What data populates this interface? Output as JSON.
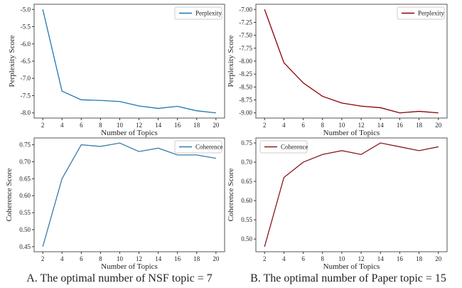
{
  "chart_data": [
    {
      "type": "line",
      "panel": "A-top",
      "xlabel": "Number of Topics",
      "ylabel": "Perplexity Score",
      "x": [
        2,
        4,
        6,
        8,
        10,
        12,
        14,
        16,
        18,
        20
      ],
      "xticks": [
        2,
        4,
        6,
        8,
        10,
        12,
        14,
        16,
        18,
        20
      ],
      "yticks": [
        -8.0,
        -7.5,
        -7.0,
        -6.5,
        -6.0,
        -5.5,
        -5.0
      ],
      "ytick_decimals": 1,
      "ylim": [
        -8.15,
        -4.85
      ],
      "legend_position": "top-right",
      "grid": false,
      "series": [
        {
          "name": "Perplexity",
          "color": "#1f77b4",
          "values": [
            -5.0,
            -7.37,
            -7.62,
            -7.64,
            -7.67,
            -7.8,
            -7.87,
            -7.81,
            -7.94,
            -8.0
          ]
        }
      ]
    },
    {
      "type": "line",
      "panel": "B-top",
      "xlabel": "Number of Topics",
      "ylabel": "Perplexity Score",
      "x": [
        2,
        4,
        6,
        8,
        10,
        12,
        14,
        16,
        18,
        20
      ],
      "xticks": [
        2,
        4,
        6,
        8,
        10,
        12,
        14,
        16,
        18,
        20
      ],
      "yticks": [
        -9.0,
        -8.75,
        -8.5,
        -8.25,
        -8.0,
        -7.75,
        -7.5,
        -7.25,
        -7.0
      ],
      "ytick_decimals": 2,
      "ylim": [
        -9.1,
        -6.9
      ],
      "legend_position": "top-right",
      "grid": false,
      "series": [
        {
          "name": "Perplexity",
          "color": "#8b0000",
          "values": [
            -7.0,
            -8.03,
            -8.42,
            -8.68,
            -8.81,
            -8.87,
            -8.9,
            -9.0,
            -8.97,
            -9.0
          ]
        }
      ]
    },
    {
      "type": "line",
      "panel": "A-bottom",
      "xlabel": "Number of Topics",
      "ylabel": "Coherence Score",
      "x": [
        2,
        4,
        6,
        8,
        10,
        12,
        14,
        16,
        18,
        20
      ],
      "xticks": [
        2,
        4,
        6,
        8,
        10,
        12,
        14,
        16,
        18,
        20
      ],
      "yticks": [
        0.45,
        0.5,
        0.55,
        0.6,
        0.65,
        0.7,
        0.75
      ],
      "ytick_decimals": 2,
      "ylim": [
        0.435,
        0.77
      ],
      "legend_position": "top-right",
      "grid": false,
      "series": [
        {
          "name": "Coherence",
          "color": "#3b7ca6",
          "values": [
            0.45,
            0.65,
            0.75,
            0.745,
            0.755,
            0.73,
            0.74,
            0.72,
            0.72,
            0.71
          ]
        }
      ]
    },
    {
      "type": "line",
      "panel": "B-bottom",
      "xlabel": "Number of Topics",
      "ylabel": "Coherence Score",
      "x": [
        2,
        4,
        6,
        8,
        10,
        12,
        14,
        16,
        18,
        20
      ],
      "xticks": [
        2,
        4,
        6,
        8,
        10,
        12,
        14,
        16,
        18,
        20
      ],
      "yticks": [
        0.5,
        0.55,
        0.6,
        0.65,
        0.7,
        0.75
      ],
      "ytick_decimals": 2,
      "ylim": [
        0.467,
        0.763
      ],
      "legend_position": "top-left",
      "grid": false,
      "series": [
        {
          "name": "Coherence",
          "color": "#8b1a1a",
          "values": [
            0.48,
            0.66,
            0.7,
            0.72,
            0.73,
            0.72,
            0.75,
            0.74,
            0.73,
            0.74
          ]
        }
      ]
    }
  ],
  "captions": {
    "left": "A. The optimal number of NSF topic = 7",
    "right": "B. The optimal number of Paper topic = 15"
  }
}
